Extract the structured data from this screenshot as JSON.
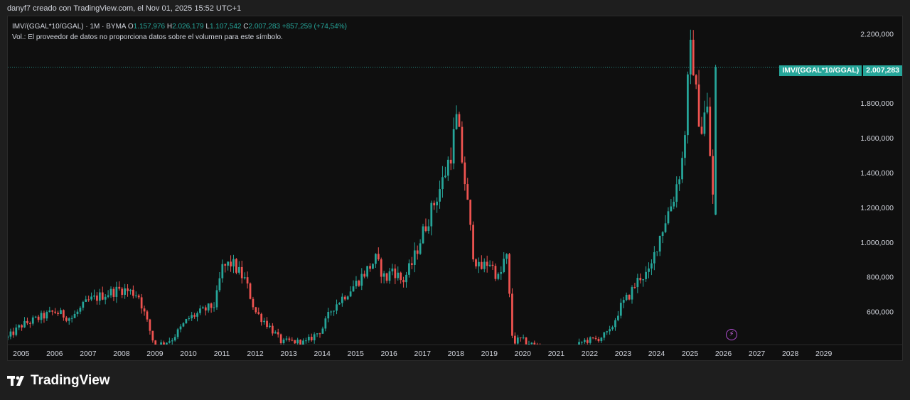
{
  "header": {
    "attribution": "danyf7 creado con TradingView.com, el Nov 01, 2025 15:52 UTC+1"
  },
  "legend": {
    "symbol": "IMV/(GGAL*10/GGAL) · 1M · BYMA",
    "open_label": "O",
    "open": "1.157,976",
    "high_label": "H",
    "high": "2.026,179",
    "low_label": "L",
    "low": "1.107,542",
    "close_label": "C",
    "close": "2.007,283",
    "change": "+857,259 (+74,54%)",
    "volume_note": "Vol.: El proveedor de datos no proporciona datos sobre el volumen para este símbolo."
  },
  "price_tag": {
    "symbol": "IMV/(GGAL*10/GGAL)",
    "value": "2.007,283"
  },
  "brand": {
    "name": "TradingView"
  },
  "colors": {
    "up": "#26a69a",
    "down": "#ef5350",
    "background": "#0f0f0f",
    "axis_text": "#d1d4dc",
    "accent": "#b04dd0"
  },
  "icons": {
    "alert": "bolt-icon"
  },
  "chart_data": {
    "type": "candlestick",
    "interval": "1M",
    "y_axis": {
      "ticks": [
        600000,
        800000,
        1000000,
        1200000,
        1400000,
        1600000,
        1800000,
        2200000
      ],
      "tick_labels": [
        "600,000",
        "800,000",
        "1.000,000",
        "1.200,000",
        "1.400,000",
        "1.600,000",
        "1.800,000",
        "2.200,000"
      ],
      "range": [
        410000,
        2300000
      ],
      "position": "right"
    },
    "x_axis": {
      "labels": [
        "2005",
        "2006",
        "2007",
        "2008",
        "2009",
        "2010",
        "2011",
        "2012",
        "2013",
        "2014",
        "2015",
        "2016",
        "2017",
        "2018",
        "2019",
        "2020",
        "2021",
        "2022",
        "2023",
        "2024",
        "2025",
        "2026",
        "2027",
        "2028",
        "2029"
      ],
      "range": [
        2004.6,
        2029.9
      ]
    },
    "last_close": 2007283,
    "anchors": [
      [
        2004.6,
        450000
      ],
      [
        2005.0,
        520000
      ],
      [
        2005.5,
        560000
      ],
      [
        2006.0,
        600000
      ],
      [
        2006.5,
        560000
      ],
      [
        2007.0,
        660000
      ],
      [
        2007.5,
        700000
      ],
      [
        2008.0,
        730000
      ],
      [
        2008.5,
        700000
      ],
      [
        2008.8,
        520000
      ],
      [
        2009.0,
        400000
      ],
      [
        2009.5,
        440000
      ],
      [
        2010.0,
        560000
      ],
      [
        2010.5,
        610000
      ],
      [
        2010.8,
        640000
      ],
      [
        2011.0,
        850000
      ],
      [
        2011.3,
        880000
      ],
      [
        2011.7,
        780000
      ],
      [
        2012.0,
        600000
      ],
      [
        2012.4,
        520000
      ],
      [
        2012.8,
        420000
      ],
      [
        2013.0,
        430000
      ],
      [
        2013.5,
        420000
      ],
      [
        2014.0,
        500000
      ],
      [
        2014.3,
        620000
      ],
      [
        2014.7,
        700000
      ],
      [
        2015.0,
        760000
      ],
      [
        2015.3,
        830000
      ],
      [
        2015.6,
        900000
      ],
      [
        2015.9,
        780000
      ],
      [
        2016.1,
        850000
      ],
      [
        2016.4,
        770000
      ],
      [
        2016.7,
        880000
      ],
      [
        2017.0,
        1050000
      ],
      [
        2017.3,
        1200000
      ],
      [
        2017.6,
        1350000
      ],
      [
        2017.9,
        1550000
      ],
      [
        2018.0,
        1720000
      ],
      [
        2018.1,
        1600000
      ],
      [
        2018.3,
        1300000
      ],
      [
        2018.5,
        950000
      ],
      [
        2018.7,
        840000
      ],
      [
        2019.0,
        890000
      ],
      [
        2019.3,
        780000
      ],
      [
        2019.5,
        950000
      ],
      [
        2019.7,
        420000
      ],
      [
        2019.9,
        440000
      ],
      [
        2020.3,
        410000
      ],
      [
        2021.0,
        360000
      ],
      [
        2021.5,
        380000
      ],
      [
        2021.8,
        430000
      ],
      [
        2022.2,
        440000
      ],
      [
        2022.6,
        480000
      ],
      [
        2022.9,
        620000
      ],
      [
        2023.2,
        700000
      ],
      [
        2023.5,
        800000
      ],
      [
        2023.8,
        820000
      ],
      [
        2024.0,
        980000
      ],
      [
        2024.3,
        1150000
      ],
      [
        2024.5,
        1250000
      ],
      [
        2024.8,
        1500000
      ],
      [
        2024.95,
        1950000
      ],
      [
        2025.05,
        2150000
      ],
      [
        2025.2,
        1800000
      ],
      [
        2025.35,
        1650000
      ],
      [
        2025.5,
        1800000
      ],
      [
        2025.6,
        1500000
      ],
      [
        2025.72,
        1160000
      ],
      [
        2025.8,
        2007283
      ]
    ]
  }
}
